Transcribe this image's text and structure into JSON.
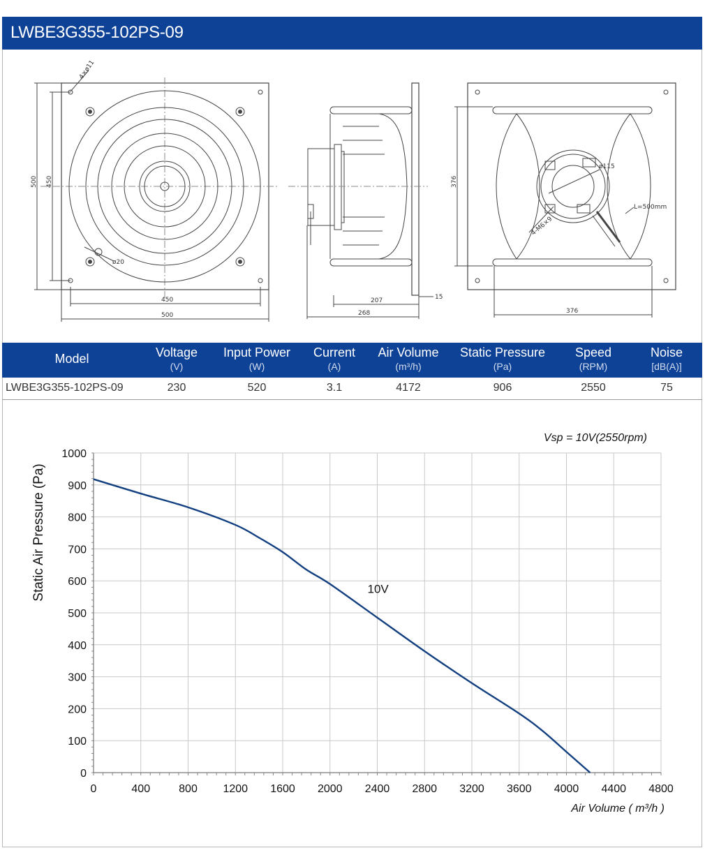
{
  "product": {
    "title": "LWBE3G355-102PS-09"
  },
  "drawings": {
    "front": {
      "dim_width_450": "450",
      "dim_width_500": "500",
      "dim_height_500": "500",
      "dim_height_450": "450",
      "hole_note": "4×ø11",
      "bore_note": "ø20"
    },
    "side": {
      "dim_207": "207",
      "dim_268": "268",
      "dim_15": "15"
    },
    "rear": {
      "dim_376_h": "376",
      "dim_376_v": "376",
      "dia_note": "ø115",
      "cable_note": "L=500mm",
      "thread_note": "4-M6×9"
    }
  },
  "spec_table": {
    "headers": [
      {
        "label": "Model",
        "unit": ""
      },
      {
        "label": "Voltage",
        "unit": "(V)"
      },
      {
        "label": "Input Power",
        "unit": "(W)"
      },
      {
        "label": "Current",
        "unit": "(A)"
      },
      {
        "label": "Air Volume",
        "unit": "(m³/h)"
      },
      {
        "label": "Static Pressure",
        "unit": "(Pa)"
      },
      {
        "label": "Speed",
        "unit": "(RPM)"
      },
      {
        "label": "Noise",
        "unit": "[dB(A)]"
      }
    ],
    "row": [
      "LWBE3G355-102PS-09",
      "230",
      "520",
      "3.1",
      "4172",
      "906",
      "2550",
      "75"
    ]
  },
  "chart_data": {
    "type": "line",
    "annotation": "Vsp = 10V(2550rpm)",
    "xlabel": "Air Volume ( m³/h )",
    "ylabel": "Static Air Pressure  (Pa)",
    "xlim": [
      0,
      4800
    ],
    "ylim": [
      0,
      1000
    ],
    "x_ticks": [
      "0",
      "400",
      "800",
      "1200",
      "1600",
      "2000",
      "2400",
      "2800",
      "3200",
      "3600",
      "4000",
      "4400",
      "4800"
    ],
    "y_ticks": [
      "0",
      "100",
      "200",
      "300",
      "400",
      "500",
      "600",
      "700",
      "800",
      "900",
      "1000"
    ],
    "grid": true,
    "series": [
      {
        "name": "10V",
        "color": "#123f80",
        "x": [
          0,
          400,
          800,
          1200,
          1400,
          1600,
          1800,
          2000,
          2400,
          2800,
          3200,
          3600,
          3800,
          4000,
          4200
        ],
        "y": [
          918,
          873,
          830,
          775,
          735,
          690,
          635,
          590,
          485,
          380,
          280,
          185,
          130,
          65,
          0
        ]
      }
    ],
    "series_label": {
      "text": "10V",
      "x": 2400,
      "y": 575
    }
  },
  "colors": {
    "brand_blue": "#0e4296",
    "curve": "#123f80"
  }
}
